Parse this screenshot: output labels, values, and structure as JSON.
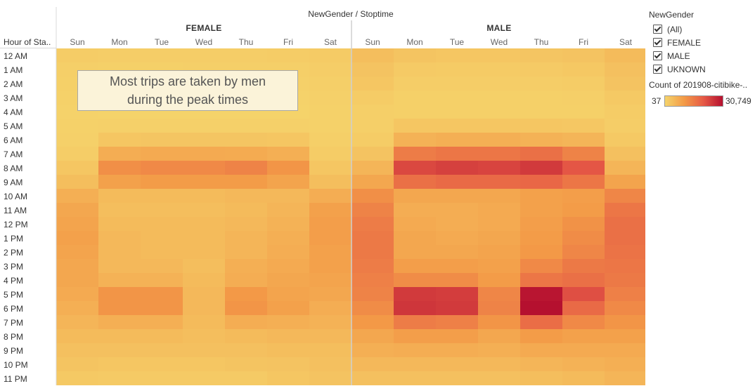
{
  "chart_data": {
    "type": "heatmap",
    "column_header": "NewGender / Stoptime",
    "row_header": "Hour of Sta..",
    "groups": [
      "FEMALE",
      "MALE"
    ],
    "days": [
      "Sun",
      "Mon",
      "Tue",
      "Wed",
      "Thu",
      "Fri",
      "Sat"
    ],
    "hours": [
      "12 AM",
      "1 AM",
      "2 AM",
      "3 AM",
      "4 AM",
      "5 AM",
      "6 AM",
      "7 AM",
      "8 AM",
      "9 AM",
      "10 AM",
      "11 AM",
      "12 PM",
      "1 PM",
      "2 PM",
      "3 PM",
      "4 PM",
      "5 PM",
      "6 PM",
      "7 PM",
      "8 PM",
      "9 PM",
      "10 PM",
      "11 PM"
    ],
    "color_range": [
      37,
      30749
    ],
    "color_ramp": [
      "#f5d46b",
      "#f39a47",
      "#e65a46",
      "#b5102f"
    ],
    "values": {
      "FEMALE": [
        [
          1500,
          1200,
          1200,
          1300,
          1300,
          1400,
          1700
        ],
        [
          1000,
          800,
          800,
          850,
          900,
          1000,
          1300
        ],
        [
          800,
          500,
          500,
          550,
          600,
          700,
          1000
        ],
        [
          500,
          300,
          300,
          350,
          350,
          400,
          700
        ],
        [
          400,
          300,
          300,
          300,
          300,
          300,
          500
        ],
        [
          500,
          700,
          700,
          700,
          700,
          700,
          500
        ],
        [
          700,
          2500,
          2700,
          2700,
          2600,
          2500,
          900
        ],
        [
          1200,
          7000,
          7500,
          7500,
          7300,
          6500,
          1500
        ],
        [
          2500,
          12000,
          13000,
          13000,
          14000,
          11000,
          2500
        ],
        [
          4000,
          9000,
          10000,
          10000,
          10000,
          8500,
          4000
        ],
        [
          6500,
          4500,
          4500,
          4500,
          5000,
          5000,
          7000
        ],
        [
          8000,
          4000,
          4000,
          4000,
          4500,
          5500,
          9000
        ],
        [
          8500,
          4500,
          4500,
          4500,
          5000,
          6000,
          9500
        ],
        [
          9000,
          5000,
          4500,
          4500,
          5500,
          6500,
          9500
        ],
        [
          8500,
          5000,
          4500,
          4500,
          5500,
          7000,
          9000
        ],
        [
          8000,
          5000,
          5000,
          4000,
          6500,
          7500,
          9000
        ],
        [
          8000,
          6000,
          6000,
          4500,
          7000,
          8000,
          8500
        ],
        [
          7500,
          11000,
          11000,
          5000,
          10500,
          8500,
          8000
        ],
        [
          6500,
          11000,
          11000,
          5000,
          11000,
          9000,
          7000
        ],
        [
          5500,
          6500,
          6500,
          4500,
          7000,
          6500,
          6000
        ],
        [
          4500,
          4500,
          4500,
          4000,
          4500,
          5000,
          5000
        ],
        [
          3500,
          3500,
          3500,
          3500,
          3500,
          4000,
          4000
        ],
        [
          2800,
          2500,
          2500,
          2500,
          2800,
          3000,
          3500
        ],
        [
          2000,
          1800,
          1800,
          1800,
          1800,
          2500,
          3000
        ]
      ],
      "MALE": [
        [
          4000,
          2800,
          2500,
          2500,
          2700,
          3000,
          4500
        ],
        [
          3000,
          1800,
          1700,
          1700,
          1800,
          2200,
          3500
        ],
        [
          2500,
          1200,
          1200,
          1200,
          1200,
          1500,
          3000
        ],
        [
          1500,
          800,
          800,
          800,
          800,
          1000,
          2000
        ],
        [
          1000,
          800,
          800,
          800,
          800,
          800,
          1500
        ],
        [
          1000,
          2500,
          2500,
          2500,
          2500,
          2300,
          1200
        ],
        [
          1500,
          6000,
          6500,
          6500,
          6000,
          5500,
          2000
        ],
        [
          3000,
          15000,
          16000,
          16000,
          17000,
          14000,
          3500
        ],
        [
          5500,
          23000,
          24000,
          23500,
          25000,
          21000,
          5500
        ],
        [
          8000,
          17000,
          18000,
          18000,
          18500,
          16000,
          8500
        ],
        [
          12000,
          8000,
          8000,
          8000,
          9000,
          9500,
          13500
        ],
        [
          14000,
          7000,
          7000,
          7500,
          9000,
          10000,
          16000
        ],
        [
          15000,
          7500,
          7000,
          7500,
          9500,
          11500,
          17000
        ],
        [
          15500,
          8000,
          7500,
          8000,
          10000,
          12500,
          17000
        ],
        [
          15500,
          8000,
          8000,
          8500,
          10500,
          13500,
          16500
        ],
        [
          15000,
          9500,
          9500,
          9000,
          13000,
          15500,
          16000
        ],
        [
          14500,
          12500,
          12500,
          10000,
          16000,
          17000,
          15500
        ],
        [
          14000,
          25000,
          24500,
          13500,
          30000,
          22000,
          14500
        ],
        [
          12500,
          25500,
          25000,
          14000,
          30749,
          18000,
          13000
        ],
        [
          10500,
          15000,
          14500,
          11000,
          17500,
          13000,
          11000
        ],
        [
          8000,
          9500,
          9500,
          8000,
          10000,
          9000,
          9000
        ],
        [
          6500,
          7000,
          7000,
          6500,
          7500,
          7500,
          7500
        ],
        [
          5000,
          5000,
          5000,
          5000,
          5500,
          6000,
          6500
        ],
        [
          3500,
          3500,
          3500,
          3500,
          4000,
          4500,
          5500
        ]
      ]
    }
  },
  "annotation": {
    "line1": "Most trips are taken by men",
    "line2": "during the peak times"
  },
  "legend": {
    "filter_title": "NewGender",
    "filter_items": [
      "(All)",
      "FEMALE",
      "MALE",
      "UKNOWN"
    ],
    "color_title": "Count of 201908-citibike-..",
    "min_label": "37",
    "max_label": "30,749"
  }
}
